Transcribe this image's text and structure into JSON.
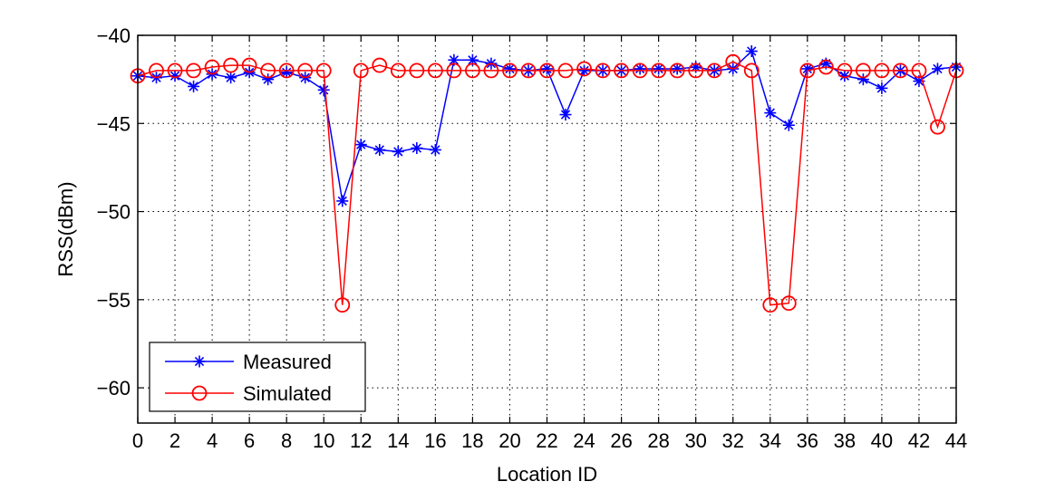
{
  "chart_data": {
    "type": "line",
    "xlabel": "Location ID",
    "ylabel": "RSS(dBm)",
    "xlim": [
      0,
      44
    ],
    "ylim": [
      -62,
      -40
    ],
    "xticks": [
      0,
      2,
      4,
      6,
      8,
      10,
      12,
      14,
      16,
      18,
      20,
      22,
      24,
      26,
      28,
      30,
      32,
      34,
      36,
      38,
      40,
      42,
      44
    ],
    "yticks": [
      -40,
      -45,
      -50,
      -55,
      -60
    ],
    "grid": true,
    "legend_position": "bottom-left",
    "x": [
      0,
      1,
      2,
      3,
      4,
      5,
      6,
      7,
      8,
      9,
      10,
      11,
      12,
      13,
      14,
      15,
      16,
      17,
      18,
      19,
      20,
      21,
      22,
      23,
      24,
      25,
      26,
      27,
      28,
      29,
      30,
      31,
      32,
      33,
      34,
      35,
      36,
      37,
      38,
      39,
      40,
      41,
      42,
      43,
      44
    ],
    "series": [
      {
        "name": "Measured",
        "color": "#0000ff",
        "marker": "asterisk",
        "values": [
          -42.3,
          -42.4,
          -42.3,
          -42.9,
          -42.2,
          -42.4,
          -42.1,
          -42.5,
          -42.1,
          -42.4,
          -43.1,
          -49.4,
          -46.2,
          -46.5,
          -46.6,
          -46.4,
          -46.5,
          -41.4,
          -41.4,
          -41.6,
          -41.9,
          -42.0,
          -41.9,
          -44.5,
          -42.0,
          -42.0,
          -42.0,
          -41.9,
          -41.9,
          -41.9,
          -41.8,
          -42.0,
          -41.9,
          -40.9,
          -44.4,
          -45.1,
          -41.9,
          -41.6,
          -42.3,
          -42.5,
          -43.0,
          -42.0,
          -42.6,
          -41.9,
          -41.8
        ]
      },
      {
        "name": "Simulated",
        "color": "#ff0000",
        "marker": "circle",
        "values": [
          -42.3,
          -42.0,
          -42.0,
          -42.0,
          -41.8,
          -41.7,
          -41.7,
          -42.0,
          -42.0,
          -42.0,
          -42.0,
          -55.3,
          -42.0,
          -41.7,
          -42.0,
          -42.0,
          -42.0,
          -42.0,
          -42.0,
          -42.0,
          -42.0,
          -42.0,
          -42.0,
          -42.0,
          -41.9,
          -42.0,
          -42.0,
          -42.0,
          -42.0,
          -42.0,
          -42.0,
          -42.0,
          -41.5,
          -42.0,
          -55.3,
          -55.2,
          -42.0,
          -41.8,
          -42.0,
          -42.0,
          -42.0,
          -42.0,
          -42.0,
          -45.2,
          -42.0
        ]
      }
    ]
  }
}
